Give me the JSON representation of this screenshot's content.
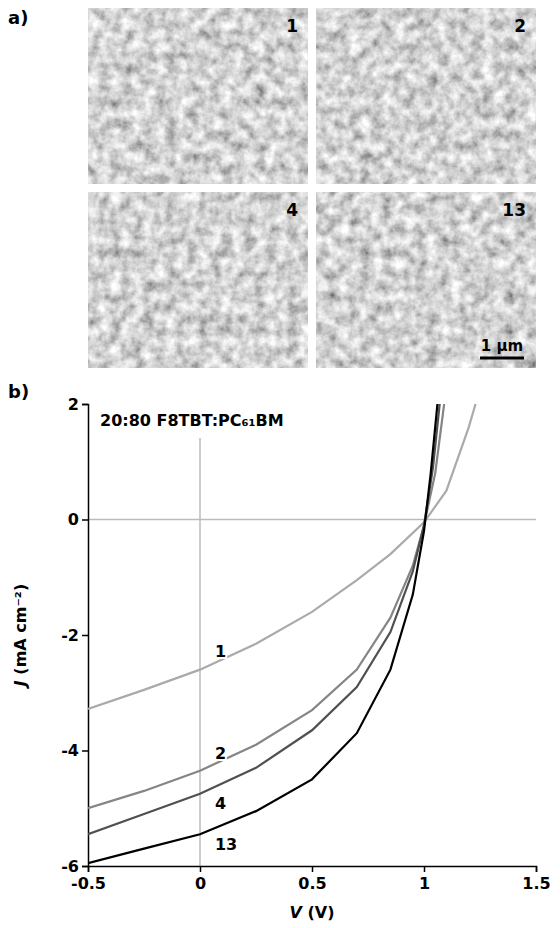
{
  "panel_a": {
    "letter": "a)",
    "images": [
      {
        "label": "1"
      },
      {
        "label": "2"
      },
      {
        "label": "4"
      },
      {
        "label": "13"
      }
    ],
    "scale_bar": "1 μm"
  },
  "chart_data": {
    "type": "line",
    "panel": "b)",
    "title": "20:80 F8TBT:PC₆₁BM",
    "x_label": "V (V)",
    "y_label": "J (mA cm⁻²)",
    "xlim": [
      -0.5,
      1.5
    ],
    "xticks": [
      -0.5,
      0,
      0.5,
      1,
      1.5
    ],
    "ylim": [
      -6,
      2
    ],
    "yticks": [
      -6,
      -4,
      -2,
      0,
      2
    ],
    "vlines": [
      0
    ],
    "hlines": [
      0
    ],
    "series": [
      {
        "name": "1",
        "color": "#aaaaaa",
        "x": [
          -0.5,
          -0.25,
          0,
          0.25,
          0.5,
          0.7,
          0.85,
          1.0,
          1.1,
          1.2,
          1.23
        ],
        "values": [
          -3.28,
          -2.95,
          -2.6,
          -2.15,
          -1.6,
          -1.05,
          -0.6,
          -0.05,
          0.5,
          1.6,
          2.0
        ]
      },
      {
        "name": "2",
        "color": "#858585",
        "x": [
          -0.5,
          -0.25,
          0,
          0.25,
          0.5,
          0.7,
          0.85,
          0.95,
          1.0,
          1.05,
          1.09
        ],
        "values": [
          -5.0,
          -4.7,
          -4.35,
          -3.9,
          -3.3,
          -2.6,
          -1.7,
          -0.8,
          -0.1,
          0.8,
          2.0
        ]
      },
      {
        "name": "4",
        "color": "#505050",
        "x": [
          -0.5,
          -0.25,
          0,
          0.25,
          0.5,
          0.7,
          0.85,
          0.95,
          1.0,
          1.04,
          1.07
        ],
        "values": [
          -5.45,
          -5.1,
          -4.75,
          -4.3,
          -3.65,
          -2.9,
          -1.95,
          -0.9,
          -0.1,
          0.9,
          2.0
        ]
      },
      {
        "name": "13",
        "color": "#000000",
        "x": [
          -0.5,
          -0.25,
          0,
          0.25,
          0.5,
          0.7,
          0.85,
          0.95,
          1.0,
          1.03,
          1.06
        ],
        "values": [
          -5.95,
          -5.7,
          -5.45,
          -5.05,
          -4.5,
          -3.7,
          -2.6,
          -1.3,
          -0.2,
          0.8,
          2.0
        ]
      }
    ]
  }
}
